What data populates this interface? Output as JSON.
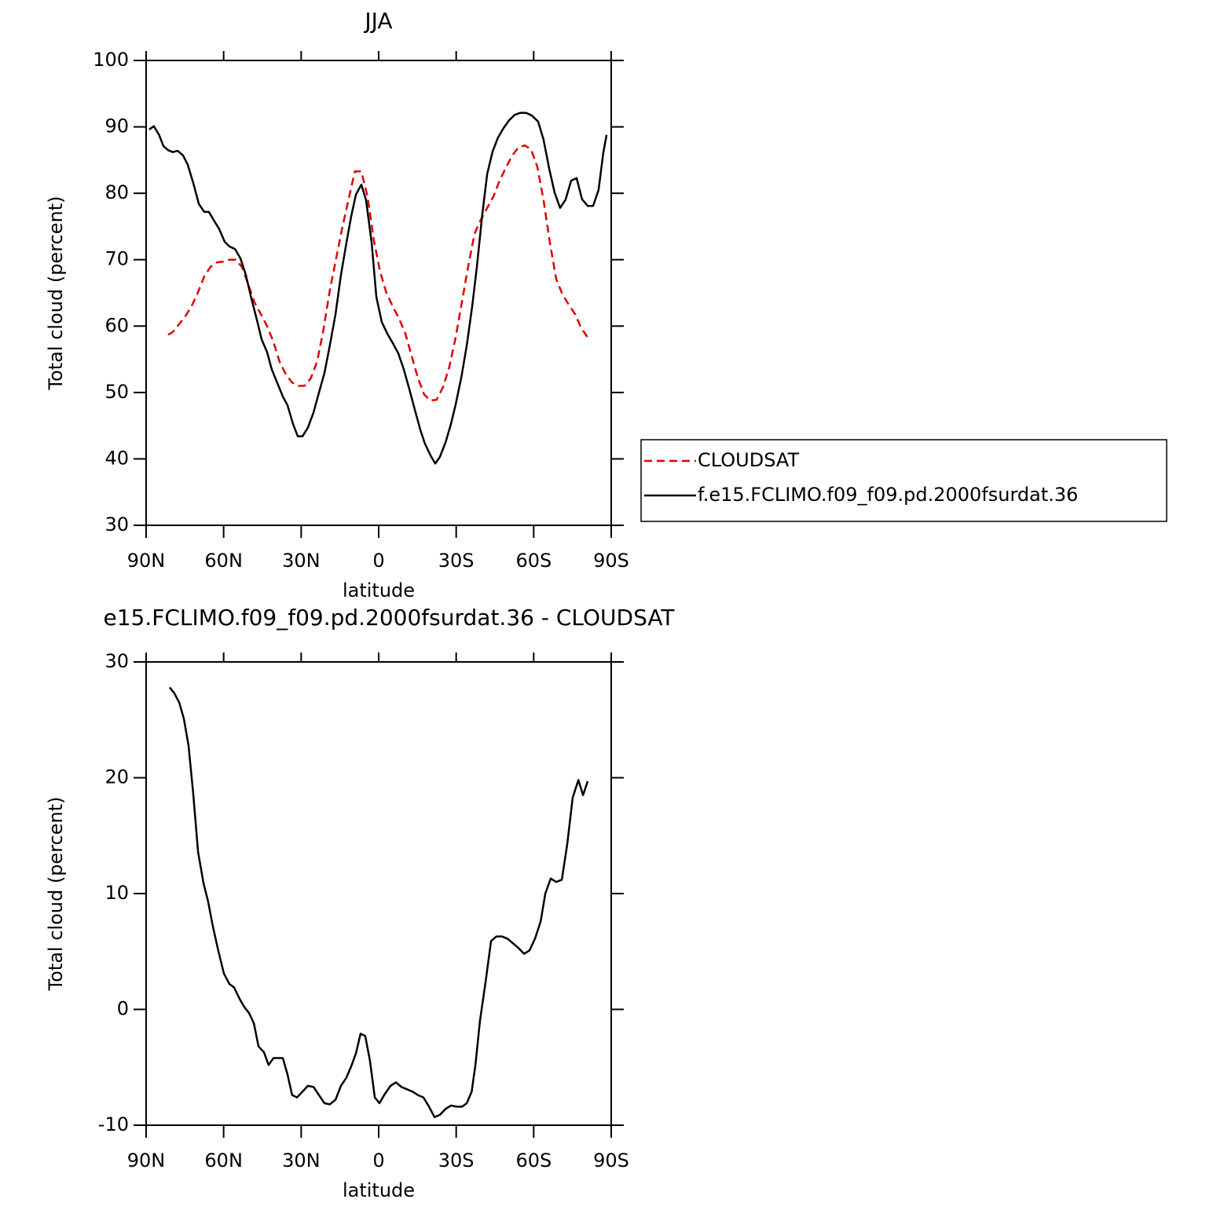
{
  "chart_data": [
    {
      "type": "line",
      "title": "JJA",
      "xlabel": "latitude",
      "ylabel": "Total cloud (percent)",
      "xlim": [
        90,
        -90
      ],
      "xticks": [
        {
          "value": 90,
          "label": "90N"
        },
        {
          "value": 60,
          "label": "60N"
        },
        {
          "value": 30,
          "label": "30N"
        },
        0,
        {
          "value": -30,
          "label": "30S"
        },
        {
          "value": -60,
          "label": "60S"
        },
        {
          "value": -90,
          "label": "90S"
        }
      ],
      "ylim": [
        30,
        100
      ],
      "yticks": [
        30,
        40,
        50,
        60,
        70,
        80,
        90,
        100
      ],
      "legend": "right",
      "series": [
        {
          "name": "CLOUDSAT",
          "color": "#e00000",
          "line_style": "dashed",
          "x": [
            81.5,
            79.7,
            77.2,
            74.8,
            72.4,
            69.9,
            67.5,
            65.1,
            62.6,
            60.2,
            57.8,
            55.3,
            52.9,
            50.5,
            48.1,
            45.6,
            43.2,
            40.8,
            38.4,
            35.9,
            33.5,
            31.1,
            28.7,
            26.3,
            23.8,
            21.4,
            18.9,
            16.5,
            14.1,
            11.7,
            9.2,
            6.7,
            4.3,
            1.9,
            -0.5,
            -2.9,
            -5.4,
            -7.8,
            -10.3,
            -12.7,
            -15.1,
            -17.6,
            -20,
            -22.4,
            -24.9,
            -27.3,
            -29.8,
            -32.2,
            -34.6,
            -37.1,
            -39.5,
            -42,
            -44.4,
            -46.8,
            -49.3,
            -51.7,
            -54.1,
            -56.6,
            -59,
            -61.4,
            -63.8,
            -66.3,
            -68.7,
            -71.1,
            -73.6,
            -76,
            -78.4,
            -80.9
          ],
          "values": [
            58.7,
            59.1,
            60.3,
            61.5,
            63,
            65.1,
            67.5,
            68.9,
            69.6,
            69.7,
            70,
            70,
            68.9,
            66.3,
            63.6,
            61.8,
            60,
            57.7,
            54.7,
            52.7,
            51.5,
            51,
            51,
            52.1,
            54.7,
            59.4,
            65.4,
            70.1,
            74.8,
            79,
            83.3,
            83.3,
            79.5,
            73,
            68.3,
            65.1,
            63,
            61.2,
            58.9,
            55.6,
            52.3,
            49.7,
            48.8,
            48.9,
            50.8,
            53.8,
            58.3,
            63.6,
            68.9,
            73.9,
            76,
            77.8,
            79.5,
            81.9,
            83.9,
            85.7,
            86.9,
            87.2,
            86.6,
            84,
            79,
            72.5,
            67.1,
            64.8,
            63.2,
            61.8,
            59.7,
            58.3
          ]
        },
        {
          "name": "f.e15.FCLIMO.f09_f09.pd.2000fsurdat.36",
          "color": "#000000",
          "line_style": "solid",
          "x": [
            88.8,
            87,
            85,
            83.3,
            81.5,
            79.7,
            77.8,
            75.7,
            73.9,
            71.8,
            69.6,
            67.5,
            65.7,
            63.9,
            61.7,
            59.6,
            57.8,
            55.6,
            53.5,
            51.4,
            49.3,
            47.1,
            45.3,
            43.2,
            41.4,
            39.2,
            37.1,
            35.3,
            33.1,
            31.3,
            29.5,
            27.4,
            25.2,
            23.1,
            21,
            18.9,
            16.7,
            14.6,
            12.5,
            10.6,
            8.8,
            6.7,
            4.9,
            2.7,
            0.9,
            -1.2,
            -3.3,
            -5.5,
            -7.6,
            -9.7,
            -11.8,
            -14,
            -16.1,
            -17.9,
            -20.1,
            -21.9,
            -23.7,
            -25.9,
            -28,
            -29.8,
            -32,
            -34.1,
            -36.2,
            -38,
            -40.1,
            -42,
            -44.1,
            -46.2,
            -48.3,
            -50.5,
            -52.6,
            -54.7,
            -57.1,
            -59.3,
            -61.7,
            -63.8,
            -66,
            -68.1,
            -70.2,
            -72.3,
            -74.5,
            -76.6,
            -78.7,
            -80.9,
            -83,
            -85.1,
            -86.9,
            -88.2
          ],
          "values": [
            89.6,
            90.1,
            88.8,
            87.1,
            86.5,
            86.2,
            86.4,
            85.7,
            84.3,
            81.6,
            78.4,
            77.2,
            77.2,
            76,
            74.6,
            72.7,
            72,
            71.6,
            70.2,
            67.7,
            64.2,
            60.9,
            58,
            56.1,
            53.5,
            51.4,
            49.4,
            48.1,
            45.2,
            43.4,
            43.4,
            44.7,
            47,
            50,
            52.9,
            57.1,
            61.8,
            67.7,
            72.5,
            76.6,
            79.8,
            81.3,
            79,
            72.5,
            64.4,
            60.6,
            58.9,
            57.4,
            55.9,
            53.5,
            50.6,
            47.4,
            44.4,
            42.3,
            40.5,
            39.3,
            40.3,
            42.5,
            45.3,
            48.2,
            52.3,
            57.1,
            63,
            68.9,
            76.8,
            82.9,
            86.3,
            88.4,
            89.8,
            91,
            91.8,
            92.1,
            92.1,
            91.7,
            90.8,
            88.1,
            83.7,
            80.1,
            77.8,
            79,
            81.9,
            82.3,
            79.1,
            78.1,
            78.1,
            80.5,
            86,
            88.8
          ]
        }
      ]
    },
    {
      "type": "line",
      "title": "e15.FCLIMO.f09_f09.pd.2000fsurdat.36 - CLOUDSAT",
      "xlabel": "latitude",
      "ylabel": "Total cloud (percent)",
      "xlim": [
        90,
        -90
      ],
      "xticks": [
        {
          "value": 90,
          "label": "90N"
        },
        {
          "value": 60,
          "label": "60N"
        },
        {
          "value": 30,
          "label": "30N"
        },
        0,
        {
          "value": -30,
          "label": "30S"
        },
        {
          "value": -60,
          "label": "60S"
        },
        {
          "value": -90,
          "label": "90S"
        }
      ],
      "ylim": [
        -10,
        30
      ],
      "yticks": [
        -10,
        0,
        10,
        20,
        30
      ],
      "color": "#000000",
      "x": [
        80.9,
        79.1,
        77.2,
        75.4,
        73.6,
        71.8,
        69.9,
        67.8,
        66,
        64.2,
        62,
        59.9,
        57.8,
        56,
        53.8,
        52,
        50.2,
        48.3,
        46.5,
        44.4,
        42.6,
        40.7,
        38.9,
        37.1,
        35.3,
        33.5,
        31.6,
        29.5,
        27.4,
        25.2,
        23.1,
        21,
        18.9,
        16.7,
        14.6,
        12.5,
        10.6,
        8.8,
        7,
        5.2,
        3.4,
        1.5,
        -0.3,
        -2.4,
        -4.6,
        -6.7,
        -8.8,
        -11,
        -13.1,
        -15.2,
        -17.3,
        -19.5,
        -21.6,
        -23.7,
        -25.9,
        -28,
        -30.1,
        -32.3,
        -34.1,
        -36,
        -37.5,
        -39.2,
        -41.4,
        -43.5,
        -45.6,
        -47.7,
        -49.9,
        -52,
        -54.1,
        -56.3,
        -58.4,
        -60.5,
        -62.7,
        -64.5,
        -66.6,
        -68.7,
        -70.9,
        -73,
        -75.1,
        -77.3,
        -79.1,
        -80.9
      ],
      "values": [
        27.8,
        27.3,
        26.5,
        25.1,
        22.8,
        18.7,
        13.6,
        10.9,
        9.3,
        7.2,
        5,
        3.1,
        2.2,
        1.9,
        0.9,
        0.2,
        -0.3,
        -1.2,
        -3.2,
        -3.7,
        -4.8,
        -4.2,
        -4.2,
        -4.2,
        -5.6,
        -7.4,
        -7.6,
        -7.1,
        -6.6,
        -6.7,
        -7.4,
        -8.1,
        -8.2,
        -7.8,
        -6.6,
        -5.9,
        -4.9,
        -3.8,
        -2.1,
        -2.3,
        -4.4,
        -7.6,
        -8.1,
        -7.3,
        -6.6,
        -6.3,
        -6.7,
        -6.9,
        -7.1,
        -7.4,
        -7.6,
        -8.4,
        -9.3,
        -9.1,
        -8.6,
        -8.3,
        -8.4,
        -8.4,
        -8.1,
        -7.1,
        -4.7,
        -1,
        2.4,
        5.9,
        6.3,
        6.3,
        6.1,
        5.7,
        5.3,
        4.8,
        5.1,
        6.1,
        7.6,
        10,
        11.3,
        11,
        11.2,
        14.3,
        18.3,
        19.8,
        18.5,
        19.7
      ]
    }
  ]
}
